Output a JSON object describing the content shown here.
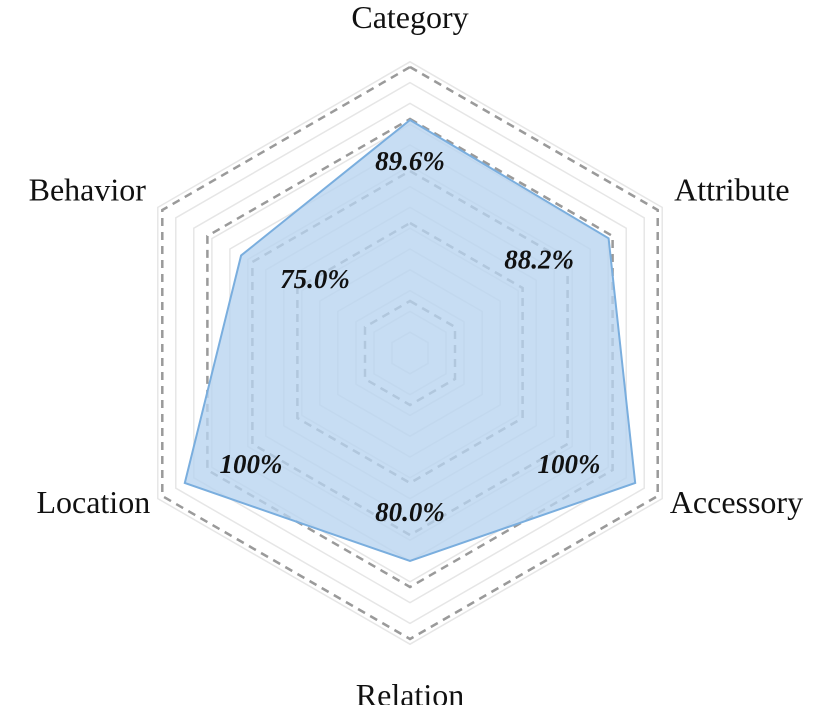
{
  "chart_data": {
    "type": "radar",
    "axes": [
      "Category",
      "Attribute",
      "Accessory",
      "Relation",
      "Location",
      "Behavior"
    ],
    "values": [
      89.6,
      88.2,
      100,
      80.0,
      100,
      75.0
    ],
    "value_labels": [
      "89.6%",
      "88.2%",
      "100%",
      "80.0%",
      "100%",
      "75.0%"
    ],
    "range": [
      0,
      100
    ],
    "dashed_rings": [
      20,
      50,
      70,
      90,
      110
    ],
    "fill_color": "#b7d3ef",
    "stroke_color": "#7aaede",
    "grid_color": "#e6e6e6",
    "dashed_color": "#9a9a9a"
  }
}
